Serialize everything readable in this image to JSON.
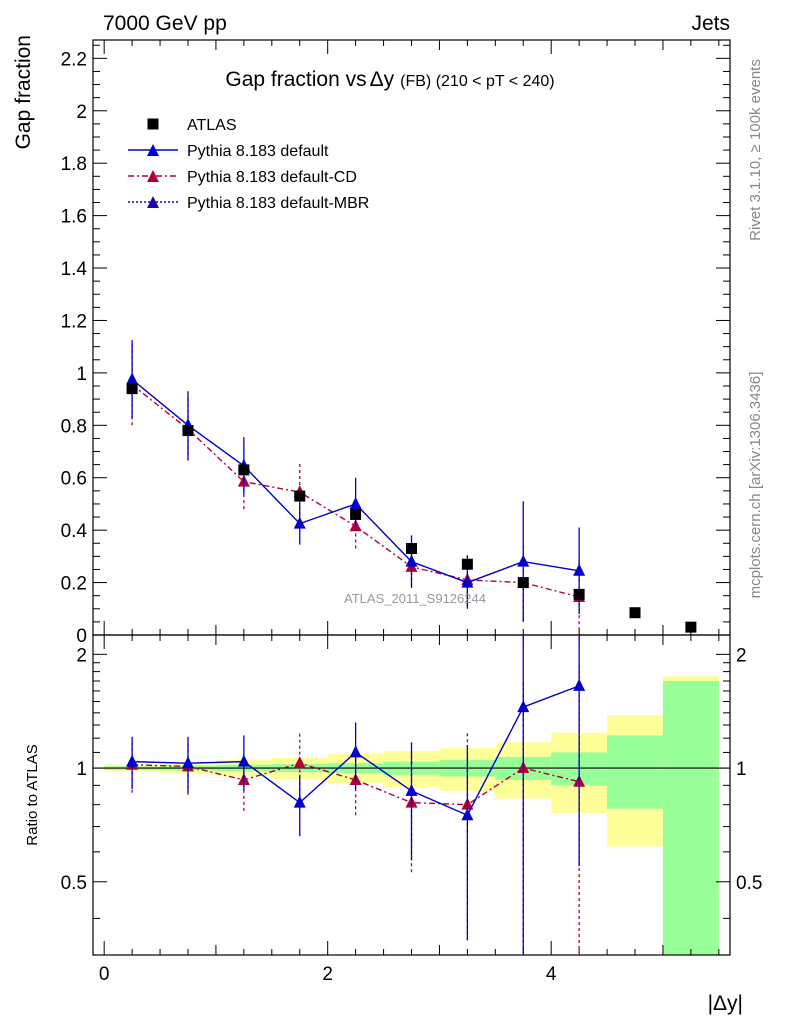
{
  "header": {
    "left": "7000 GeV pp",
    "right": "Jets"
  },
  "sidebar": {
    "rivet": "Rivet 3.1.10, ≥ 100k events",
    "mcplots": "mcplots.cern.ch [arXiv:1306.3436]"
  },
  "chart_data": {
    "type": "scatter",
    "title_main": "Gap fraction vs",
    "title_var": "Δy",
    "title_sub": "(FB) (210 < pT < 240)",
    "watermark": "ATLAS_2011_S9126244",
    "xlabel": "|Δy|",
    "ylabel_top": "Gap fraction",
    "ylabel_bottom": "Ratio to ATLAS",
    "xlim": [
      -0.1,
      5.6
    ],
    "ylim_top": [
      0,
      2.27
    ],
    "ylim_bottom": [
      0.32,
      2.25
    ],
    "x_ticks": [
      "0",
      "2",
      "4"
    ],
    "y_ticks_top": [
      "0",
      "0.2",
      "0.4",
      "0.6",
      "0.8",
      "1",
      "1.2",
      "1.4",
      "1.6",
      "1.8",
      "2",
      "2.2"
    ],
    "y_ticks_bottom": [
      "0.5",
      "1",
      "2"
    ],
    "legend": [
      {
        "name": "ATLAS",
        "color": "#000000",
        "marker": "square",
        "line": "none"
      },
      {
        "name": "Pythia 8.183 default",
        "color": "#0000cc",
        "marker": "triangle",
        "line": "solid"
      },
      {
        "name": "Pythia 8.183 default-CD",
        "color": "#b0003a",
        "marker": "triangle",
        "line": "dashdot"
      },
      {
        "name": "Pythia 8.183 default-MBR",
        "color": "#2200aa",
        "marker": "triangle",
        "line": "dotted"
      }
    ],
    "atlas": {
      "x": [
        0.25,
        0.75,
        1.25,
        1.75,
        2.25,
        2.75,
        3.25,
        3.75,
        4.25,
        4.75,
        5.25
      ],
      "y": [
        0.94,
        0.78,
        0.63,
        0.53,
        0.46,
        0.33,
        0.27,
        0.2,
        0.155,
        0.085,
        0.03
      ]
    },
    "series": [
      {
        "name": "Pythia 8.183 default",
        "color": "#0000cc",
        "x": [
          0.25,
          0.75,
          1.25,
          1.75,
          2.25,
          2.75,
          3.25,
          3.75,
          4.25
        ],
        "y": [
          0.975,
          0.8,
          0.645,
          0.425,
          0.5,
          0.28,
          0.2,
          0.28,
          0.245
        ],
        "err": [
          0.15,
          0.13,
          0.11,
          0.08,
          0.1,
          0.1,
          0.1,
          0.23,
          0.165
        ],
        "ratio": [
          1.04,
          1.03,
          1.04,
          0.81,
          1.1,
          0.87,
          0.75,
          1.45,
          1.65
        ],
        "ratio_err_lo": [
          0.16,
          0.17,
          0.17,
          0.15,
          0.22,
          0.3,
          0.4,
          1.3,
          1.1
        ],
        "ratio_err_hi": [
          0.17,
          0.18,
          0.18,
          0.15,
          0.22,
          0.3,
          0.4,
          1.3,
          1.1
        ]
      },
      {
        "name": "Pythia 8.183 default-CD",
        "color": "#b0003a",
        "x": [
          0.25,
          0.75,
          1.25,
          1.75,
          2.25,
          2.75,
          3.25,
          3.75,
          4.25
        ],
        "y": [
          0.955,
          0.785,
          0.585,
          0.545,
          0.415,
          0.26,
          0.21,
          0.2,
          0.145
        ],
        "err": [
          0.155,
          0.12,
          0.105,
          0.11,
          0.085,
          0.075,
          0.1,
          0.145,
          0.15
        ],
        "ratio": [
          1.02,
          1.01,
          0.93,
          1.03,
          0.93,
          0.81,
          0.8,
          1.0,
          0.92
        ],
        "ratio_err_lo": [
          0.16,
          0.16,
          0.16,
          0.22,
          0.18,
          0.28,
          0.45,
          0.72,
          0.95
        ],
        "ratio_err_hi": [
          0.16,
          0.16,
          0.16,
          0.22,
          0.18,
          0.28,
          0.45,
          0.72,
          0.95
        ]
      }
    ],
    "bands": {
      "x_edges": [
        0.0,
        0.5,
        1.0,
        1.5,
        2.0,
        2.5,
        3.0,
        3.5,
        4.0,
        4.5,
        5.0,
        5.5
      ],
      "green_half": [
        0.01,
        0.015,
        0.02,
        0.025,
        0.03,
        0.04,
        0.05,
        0.07,
        0.1,
        0.22,
        0.7
      ],
      "yellow_half": [
        0.02,
        0.03,
        0.05,
        0.065,
        0.09,
        0.11,
        0.13,
        0.17,
        0.24,
        0.38,
        0.75
      ],
      "green_color": "#99ff99",
      "yellow_color": "#ffff99"
    }
  }
}
